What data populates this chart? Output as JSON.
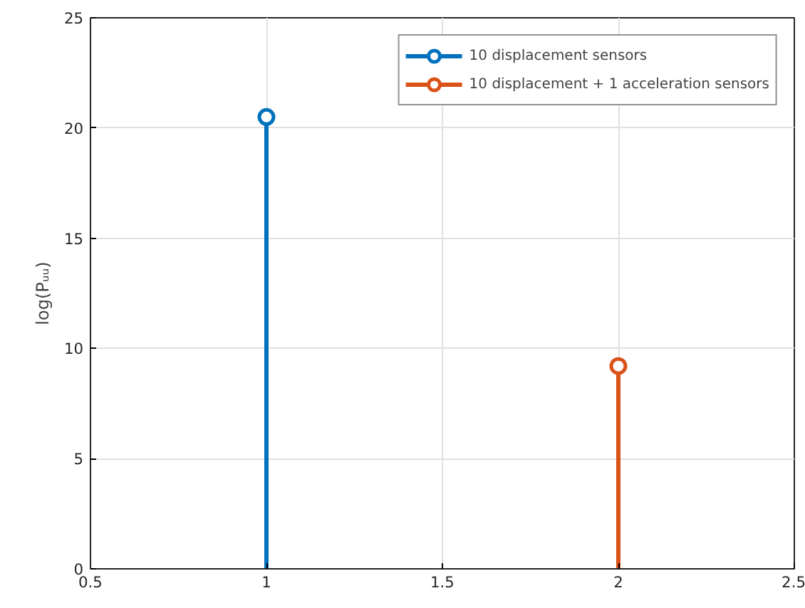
{
  "chart_data": {
    "type": "lollipop",
    "ylabel": "log(Pᵤᵤ)",
    "series": [
      {
        "name": "10 displacement sensors",
        "color": "#0072bd",
        "x": [
          1
        ],
        "values": [
          20.5
        ]
      },
      {
        "name": "10 displacement + 1 acceleration sensors",
        "color": "#d95319",
        "x": [
          2
        ],
        "values": [
          9.2
        ]
      }
    ],
    "xlim": [
      0.5,
      2.5
    ],
    "xticks": [
      0.5,
      1,
      1.5,
      2,
      2.5
    ],
    "ylim": [
      0,
      25
    ],
    "yticks": [
      0,
      5,
      10,
      15,
      20,
      25
    ],
    "grid": true,
    "legend": "top right",
    "marker": "circle"
  }
}
